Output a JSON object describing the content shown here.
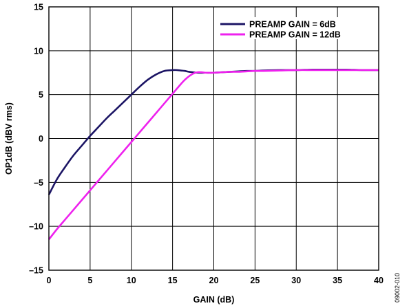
{
  "chart_data": {
    "type": "line",
    "xlabel": "GAIN (dB)",
    "ylabel": "OP1dB (dBV rms)",
    "xlim": [
      0,
      40
    ],
    "ylim": [
      -15,
      15
    ],
    "x_ticks": [
      "0",
      "5",
      "10",
      "15",
      "20",
      "25",
      "30",
      "35",
      "40"
    ],
    "y_ticks": [
      "–15",
      "–10",
      "–5",
      "0",
      "5",
      "10",
      "15"
    ],
    "grid": true,
    "legend_position": "top-right",
    "series": [
      {
        "name": "PREAMP GAIN = 6dB",
        "color": "#1b1464",
        "x": [
          0,
          1,
          2,
          3,
          4,
          5,
          6,
          7,
          8,
          9,
          10,
          11,
          12,
          13,
          14,
          15,
          15.5,
          16,
          16.5,
          17,
          17.5,
          18,
          19,
          20,
          21,
          22,
          23,
          24,
          25,
          26,
          28,
          30,
          32,
          34,
          36,
          38,
          40
        ],
        "y": [
          -6.4,
          -4.6,
          -3.2,
          -1.9,
          -0.8,
          0.3,
          1.3,
          2.3,
          3.2,
          4.1,
          5.0,
          5.9,
          6.7,
          7.3,
          7.7,
          7.8,
          7.8,
          7.75,
          7.7,
          7.6,
          7.55,
          7.5,
          7.5,
          7.5,
          7.55,
          7.6,
          7.65,
          7.7,
          7.7,
          7.75,
          7.8,
          7.8,
          7.85,
          7.85,
          7.85,
          7.8,
          7.8
        ]
      },
      {
        "name": "PREAMP GAIN = 12dB",
        "color": "#ee21ee",
        "x": [
          0,
          1,
          2,
          3,
          4,
          5,
          6,
          7,
          8,
          9,
          10,
          11,
          12,
          13,
          14,
          15,
          16,
          16.5,
          17,
          17.5,
          18,
          18.5,
          19,
          19.5,
          20,
          21,
          22,
          23,
          24,
          25,
          26,
          28,
          30,
          32,
          34,
          36,
          38,
          40
        ],
        "y": [
          -11.5,
          -10.3,
          -9.2,
          -8.1,
          -7.0,
          -5.9,
          -4.8,
          -3.7,
          -2.6,
          -1.5,
          -0.4,
          0.7,
          1.8,
          2.9,
          4.0,
          5.1,
          6.2,
          6.7,
          7.1,
          7.4,
          7.55,
          7.55,
          7.5,
          7.5,
          7.5,
          7.55,
          7.6,
          7.6,
          7.65,
          7.7,
          7.7,
          7.75,
          7.8,
          7.8,
          7.8,
          7.8,
          7.8,
          7.8
        ]
      }
    ]
  },
  "figure_id": "09002-010"
}
